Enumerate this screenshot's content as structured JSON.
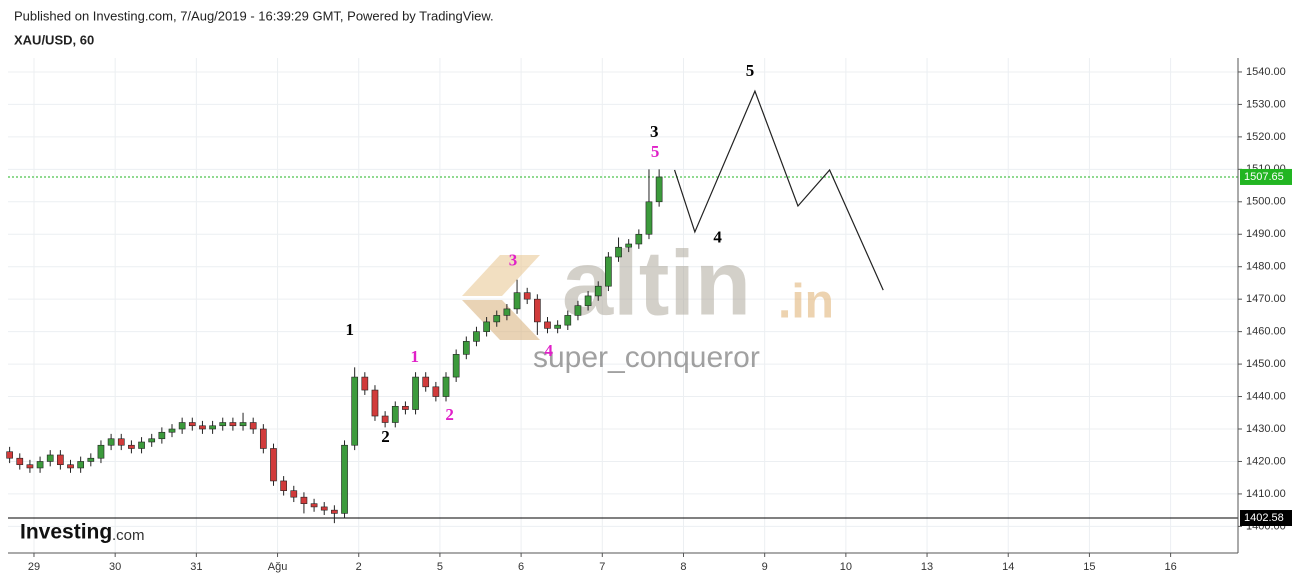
{
  "header": {
    "published": "Published on Investing.com, 7/Aug/2019 - 16:39:29 GMT, Powered by TradingView.",
    "symbol": "XAU/USD, 60"
  },
  "watermark": {
    "logo": "altin",
    "logo_suffix": ".in",
    "author": "super_conqueror"
  },
  "brand": {
    "name": "Investing",
    "suffix": ".com"
  },
  "chart_data": {
    "type": "candlestick",
    "up_color": "#3c9a3c",
    "down_color": "#d13b3b",
    "grid": true,
    "xlim": [
      -0.32,
      14.83
    ],
    "ylim": [
      1391.8,
      1544.3
    ],
    "xticks": [
      {
        "value": 0,
        "label": "29"
      },
      {
        "value": 1,
        "label": "30"
      },
      {
        "value": 2,
        "label": "31"
      },
      {
        "value": 3,
        "label": "Ağu"
      },
      {
        "value": 4,
        "label": "2"
      },
      {
        "value": 5,
        "label": "5"
      },
      {
        "value": 6,
        "label": "6"
      },
      {
        "value": 7,
        "label": "7"
      },
      {
        "value": 8,
        "label": "8"
      },
      {
        "value": 9,
        "label": "9"
      },
      {
        "value": 10,
        "label": "10"
      },
      {
        "value": 11,
        "label": "13"
      },
      {
        "value": 12,
        "label": "14"
      },
      {
        "value": 13,
        "label": "15"
      },
      {
        "value": 14,
        "label": "16"
      }
    ],
    "yticks": [
      {
        "value": 1400,
        "label": "1400.00"
      },
      {
        "value": 1410,
        "label": "1410.00"
      },
      {
        "value": 1420,
        "label": "1420.00"
      },
      {
        "value": 1430,
        "label": "1430.00"
      },
      {
        "value": 1440,
        "label": "1440.00"
      },
      {
        "value": 1450,
        "label": "1450.00"
      },
      {
        "value": 1460,
        "label": "1460.00"
      },
      {
        "value": 1470,
        "label": "1470.00"
      },
      {
        "value": 1480,
        "label": "1480.00"
      },
      {
        "value": 1490,
        "label": "1490.00"
      },
      {
        "value": 1500,
        "label": "1500.00"
      },
      {
        "value": 1510,
        "label": "1510.00"
      },
      {
        "value": 1520,
        "label": "1520.00"
      },
      {
        "value": 1530,
        "label": "1530.00"
      },
      {
        "value": 1540,
        "label": "1540.00"
      }
    ],
    "candles": {
      "x": [
        -0.3,
        -0.175,
        -0.05,
        0.075,
        0.2,
        0.325,
        0.45,
        0.575,
        0.7,
        0.825,
        0.95,
        1.075,
        1.2,
        1.325,
        1.45,
        1.575,
        1.7,
        1.825,
        1.95,
        2.075,
        2.2,
        2.325,
        2.45,
        2.575,
        2.7,
        2.825,
        2.95,
        3.075,
        3.2,
        3.325,
        3.45,
        3.575,
        3.7,
        3.825,
        3.95,
        4.075,
        4.2,
        4.325,
        4.45,
        4.575,
        4.7,
        4.825,
        4.95,
        5.075,
        5.2,
        5.325,
        5.45,
        5.575,
        5.7,
        5.825,
        5.95,
        6.075,
        6.2,
        6.325,
        6.45,
        6.575,
        6.7,
        6.825,
        6.95,
        7.075,
        7.2,
        7.325,
        7.45,
        7.575,
        7.7
      ],
      "open": [
        1423,
        1421,
        1419,
        1418,
        1420,
        1422,
        1419,
        1418,
        1420,
        1421,
        1425,
        1427,
        1425,
        1424,
        1426,
        1427,
        1429,
        1430,
        1432,
        1431,
        1430,
        1431,
        1432,
        1431,
        1432,
        1430,
        1424,
        1414,
        1411,
        1409,
        1407,
        1406,
        1405,
        1404,
        1425,
        1446,
        1442,
        1434,
        1432,
        1437,
        1436,
        1446,
        1443,
        1440,
        1446,
        1453,
        1457,
        1460,
        1463,
        1465,
        1467,
        1472,
        1470,
        1463,
        1461,
        1462,
        1465,
        1468,
        1471,
        1474,
        1483,
        1486,
        1487,
        1490,
        1500
      ],
      "high": [
        1424.5,
        1422.5,
        1420.5,
        1421.5,
        1423.5,
        1423.5,
        1420.5,
        1421.5,
        1422.5,
        1426.5,
        1428.5,
        1428.5,
        1426.5,
        1427.5,
        1428.5,
        1430.5,
        1431.5,
        1433.5,
        1433.5,
        1432.5,
        1432.5,
        1433.5,
        1433.5,
        1435,
        1433.5,
        1431.5,
        1425.5,
        1415.5,
        1412.5,
        1410.5,
        1408.5,
        1407.5,
        1406.5,
        1426.5,
        1449,
        1447.5,
        1443.5,
        1435.5,
        1438.5,
        1438.5,
        1447.5,
        1447.5,
        1444.5,
        1447.5,
        1454.5,
        1458.5,
        1461.5,
        1464.5,
        1466.5,
        1468.5,
        1476,
        1473.5,
        1471.5,
        1464.5,
        1463.5,
        1466.5,
        1469.5,
        1472.5,
        1475.5,
        1484.5,
        1489,
        1488.5,
        1491.5,
        1510,
        1510
      ],
      "low": [
        1419.5,
        1417.5,
        1416.5,
        1416.5,
        1418.5,
        1417.5,
        1416.5,
        1416.5,
        1418.5,
        1419.5,
        1423.5,
        1423.5,
        1422.5,
        1422.5,
        1424.5,
        1425.5,
        1427.5,
        1428.5,
        1429.5,
        1428.5,
        1428.5,
        1429.5,
        1429.5,
        1429.5,
        1428.5,
        1422.5,
        1412.5,
        1409.5,
        1407.5,
        1404,
        1404.5,
        1403.5,
        1401,
        1402.5,
        1423.5,
        1440.5,
        1432.5,
        1430.5,
        1430.5,
        1434.5,
        1434.5,
        1441.5,
        1438.5,
        1438.5,
        1444.5,
        1451.5,
        1455.5,
        1458.5,
        1461.5,
        1463.5,
        1465.5,
        1468.5,
        1459,
        1459.5,
        1459.5,
        1460.5,
        1463.5,
        1466.5,
        1469.5,
        1472.5,
        1481.5,
        1484.5,
        1485.5,
        1488.5,
        1498.5
      ],
      "close": [
        1421,
        1419,
        1418,
        1420,
        1422,
        1419,
        1418,
        1420,
        1421,
        1425,
        1427,
        1425,
        1424,
        1426,
        1427,
        1429,
        1430,
        1432,
        1431,
        1430,
        1431,
        1432,
        1431,
        1432,
        1430,
        1424,
        1414,
        1411,
        1409,
        1407,
        1406,
        1405,
        1404,
        1425,
        1446,
        1442,
        1434,
        1432,
        1437,
        1436,
        1446,
        1443,
        1440,
        1446,
        1453,
        1457,
        1460,
        1463,
        1465,
        1467,
        1472,
        1470,
        1463,
        1461,
        1462,
        1465,
        1468,
        1471,
        1474,
        1483,
        1486,
        1487,
        1490,
        1500,
        1507.65
      ]
    },
    "projection": {
      "x": [
        7.89,
        8.14,
        8.88,
        9.41,
        9.8,
        10.46
      ],
      "values": [
        1509.8,
        1490.7,
        1534.1,
        1498.7,
        1509.8,
        1472.8
      ],
      "color": "#222222"
    },
    "hlines": [
      {
        "value": 1507.65,
        "color": "#22b522",
        "dash": true
      },
      {
        "value": 1402.58,
        "color": "#000000",
        "dash": false
      }
    ],
    "annotations": [
      {
        "text": "1",
        "x": 3.89,
        "y": 1460.1,
        "color": "#000000"
      },
      {
        "text": "2",
        "x": 4.33,
        "y": 1427.2,
        "color": "#000000"
      },
      {
        "text": "3",
        "x": 7.64,
        "y": 1521.2,
        "color": "#000000"
      },
      {
        "text": "4",
        "x": 8.42,
        "y": 1488.6,
        "color": "#000000"
      },
      {
        "text": "5",
        "x": 8.82,
        "y": 1540,
        "color": "#000000"
      },
      {
        "text": "1",
        "x": 4.69,
        "y": 1451.9,
        "color": "#e020c8"
      },
      {
        "text": "2",
        "x": 5.12,
        "y": 1434,
        "color": "#e020c8"
      },
      {
        "text": "3",
        "x": 5.9,
        "y": 1481.5,
        "color": "#e020c8"
      },
      {
        "text": "4",
        "x": 6.34,
        "y": 1453.7,
        "color": "#e020c8"
      },
      {
        "text": "5",
        "x": 7.65,
        "y": 1515,
        "color": "#e020c8"
      }
    ]
  }
}
